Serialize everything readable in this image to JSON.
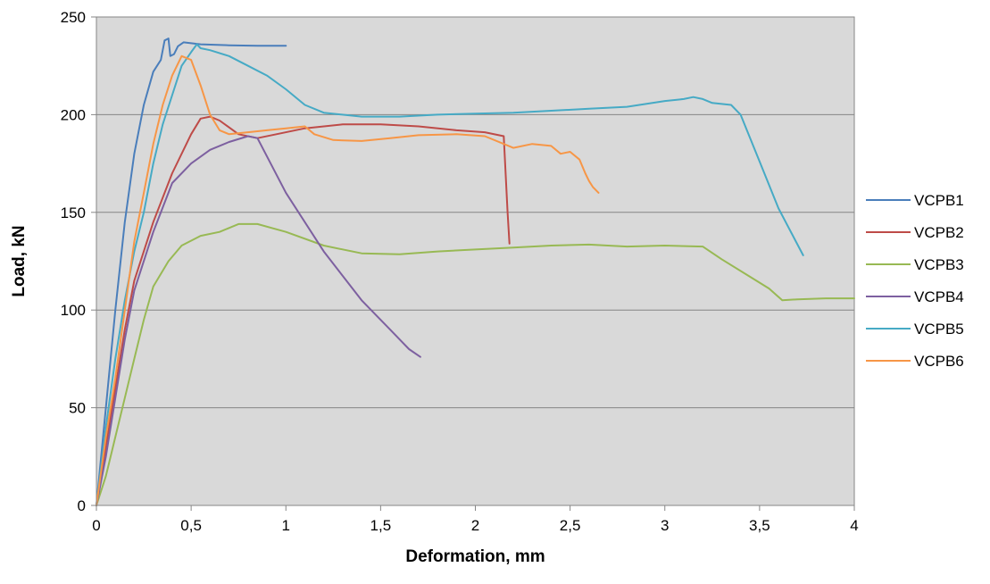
{
  "chart_data": {
    "type": "line",
    "title": "",
    "xlabel": "Deformation, mm",
    "ylabel": "Load, kN",
    "xlim": [
      0,
      4
    ],
    "ylim": [
      0,
      250
    ],
    "x_ticks": [
      0,
      0.5,
      1,
      1.5,
      2,
      2.5,
      3,
      3.5,
      4
    ],
    "x_tick_labels": [
      "0",
      "0,5",
      "1",
      "1,5",
      "2",
      "2,5",
      "3",
      "3,5",
      "4"
    ],
    "y_ticks": [
      0,
      50,
      100,
      150,
      200,
      250
    ],
    "y_tick_labels": [
      "0",
      "50",
      "100",
      "150",
      "200",
      "250"
    ],
    "grid": "horizontal",
    "plot_background": "#d9d9d9",
    "legend_position": "right",
    "series": [
      {
        "name": "VCPB1",
        "color": "#4a7ebb",
        "points": [
          [
            0,
            0
          ],
          [
            0.05,
            50
          ],
          [
            0.1,
            100
          ],
          [
            0.15,
            145
          ],
          [
            0.2,
            180
          ],
          [
            0.25,
            205
          ],
          [
            0.3,
            222
          ],
          [
            0.34,
            228
          ],
          [
            0.36,
            238
          ],
          [
            0.38,
            239
          ],
          [
            0.39,
            230
          ],
          [
            0.41,
            231
          ],
          [
            0.43,
            235
          ],
          [
            0.46,
            237
          ],
          [
            0.55,
            236
          ],
          [
            0.7,
            235.5
          ],
          [
            0.85,
            235.3
          ],
          [
            1.0,
            235.3
          ]
        ]
      },
      {
        "name": "VCPB2",
        "color": "#be4b48",
        "points": [
          [
            0,
            0
          ],
          [
            0.05,
            30
          ],
          [
            0.1,
            60
          ],
          [
            0.15,
            90
          ],
          [
            0.2,
            115
          ],
          [
            0.3,
            145
          ],
          [
            0.4,
            170
          ],
          [
            0.5,
            190
          ],
          [
            0.55,
            198
          ],
          [
            0.6,
            199
          ],
          [
            0.65,
            197
          ],
          [
            0.75,
            190
          ],
          [
            0.85,
            188
          ],
          [
            0.95,
            190
          ],
          [
            1.1,
            193
          ],
          [
            1.3,
            195
          ],
          [
            1.5,
            195
          ],
          [
            1.7,
            194
          ],
          [
            1.9,
            192
          ],
          [
            2.05,
            191
          ],
          [
            2.15,
            189
          ],
          [
            2.17,
            150
          ],
          [
            2.18,
            134
          ]
        ]
      },
      {
        "name": "VCPB3",
        "color": "#98b954",
        "points": [
          [
            0,
            0
          ],
          [
            0.05,
            15
          ],
          [
            0.1,
            35
          ],
          [
            0.15,
            55
          ],
          [
            0.2,
            75
          ],
          [
            0.25,
            95
          ],
          [
            0.3,
            112
          ],
          [
            0.38,
            125
          ],
          [
            0.45,
            133
          ],
          [
            0.55,
            138
          ],
          [
            0.65,
            140
          ],
          [
            0.75,
            144
          ],
          [
            0.85,
            144
          ],
          [
            1.0,
            140
          ],
          [
            1.2,
            133
          ],
          [
            1.4,
            129
          ],
          [
            1.6,
            128.5
          ],
          [
            1.8,
            130
          ],
          [
            2.0,
            131
          ],
          [
            2.2,
            132
          ],
          [
            2.4,
            133
          ],
          [
            2.6,
            133.5
          ],
          [
            2.8,
            132.5
          ],
          [
            3.0,
            133
          ],
          [
            3.2,
            132.5
          ],
          [
            3.3,
            126
          ],
          [
            3.45,
            117
          ],
          [
            3.55,
            111
          ],
          [
            3.62,
            105
          ],
          [
            3.7,
            105.5
          ],
          [
            3.85,
            106
          ],
          [
            4.0,
            106
          ]
        ]
      },
      {
        "name": "VCPB4",
        "color": "#7d60a0",
        "points": [
          [
            0,
            0
          ],
          [
            0.05,
            25
          ],
          [
            0.1,
            55
          ],
          [
            0.15,
            85
          ],
          [
            0.2,
            110
          ],
          [
            0.3,
            140
          ],
          [
            0.4,
            165
          ],
          [
            0.5,
            175
          ],
          [
            0.6,
            182
          ],
          [
            0.7,
            186
          ],
          [
            0.8,
            189
          ],
          [
            0.85,
            188
          ],
          [
            1.0,
            160
          ],
          [
            1.2,
            130
          ],
          [
            1.4,
            105
          ],
          [
            1.55,
            90
          ],
          [
            1.65,
            80
          ],
          [
            1.71,
            76
          ]
        ]
      },
      {
        "name": "VCPB5",
        "color": "#46aac5",
        "points": [
          [
            0,
            0
          ],
          [
            0.05,
            40
          ],
          [
            0.1,
            75
          ],
          [
            0.15,
            105
          ],
          [
            0.2,
            130
          ],
          [
            0.25,
            150
          ],
          [
            0.3,
            175
          ],
          [
            0.35,
            195
          ],
          [
            0.4,
            210
          ],
          [
            0.45,
            225
          ],
          [
            0.5,
            232
          ],
          [
            0.53,
            236
          ],
          [
            0.55,
            234
          ],
          [
            0.6,
            233
          ],
          [
            0.7,
            230
          ],
          [
            0.8,
            225
          ],
          [
            0.9,
            220
          ],
          [
            1.0,
            213
          ],
          [
            1.1,
            205
          ],
          [
            1.2,
            201
          ],
          [
            1.4,
            199
          ],
          [
            1.6,
            199
          ],
          [
            1.8,
            200
          ],
          [
            2.0,
            200.5
          ],
          [
            2.2,
            201
          ],
          [
            2.4,
            202
          ],
          [
            2.6,
            203
          ],
          [
            2.8,
            204
          ],
          [
            3.0,
            207
          ],
          [
            3.1,
            208
          ],
          [
            3.15,
            209
          ],
          [
            3.2,
            208
          ],
          [
            3.25,
            206
          ],
          [
            3.35,
            205
          ],
          [
            3.4,
            200
          ],
          [
            3.5,
            176
          ],
          [
            3.6,
            152
          ],
          [
            3.73,
            128
          ]
        ]
      },
      {
        "name": "VCPB6",
        "color": "#f79646",
        "points": [
          [
            0,
            0
          ],
          [
            0.05,
            35
          ],
          [
            0.1,
            65
          ],
          [
            0.15,
            100
          ],
          [
            0.2,
            135
          ],
          [
            0.25,
            160
          ],
          [
            0.3,
            185
          ],
          [
            0.35,
            205
          ],
          [
            0.4,
            220
          ],
          [
            0.45,
            230
          ],
          [
            0.5,
            228
          ],
          [
            0.55,
            215
          ],
          [
            0.6,
            200
          ],
          [
            0.65,
            192
          ],
          [
            0.7,
            190
          ],
          [
            0.8,
            191
          ],
          [
            0.9,
            192
          ],
          [
            1.0,
            193
          ],
          [
            1.1,
            194
          ],
          [
            1.15,
            190
          ],
          [
            1.25,
            187
          ],
          [
            1.4,
            186.5
          ],
          [
            1.55,
            188
          ],
          [
            1.7,
            189.5
          ],
          [
            1.9,
            190
          ],
          [
            2.05,
            189
          ],
          [
            2.2,
            183
          ],
          [
            2.3,
            185
          ],
          [
            2.4,
            184
          ],
          [
            2.45,
            180
          ],
          [
            2.5,
            181
          ],
          [
            2.55,
            177
          ],
          [
            2.58,
            170
          ],
          [
            2.6,
            166
          ],
          [
            2.62,
            163
          ],
          [
            2.65,
            160
          ]
        ]
      }
    ]
  }
}
